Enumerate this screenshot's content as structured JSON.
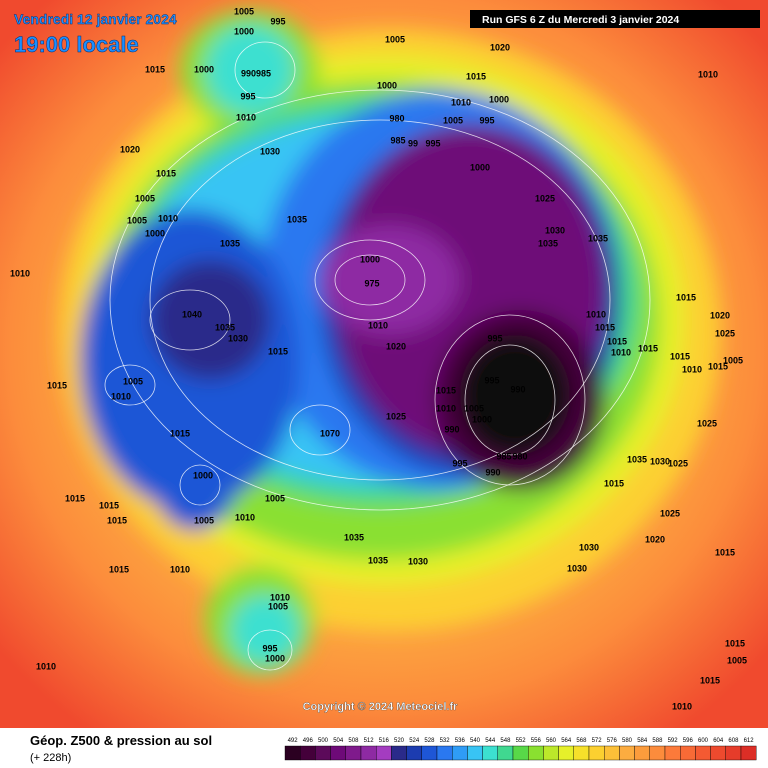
{
  "header": {
    "date": "Vendredi 12 janvier 2024",
    "time": "19:00 locale",
    "run": "Run GFS 6 Z du Mercredi 3 janvier 2024"
  },
  "copyright": "Copyright © 2024 Meteociel.fr",
  "footer": {
    "title": "Géop. Z500 & pression au sol",
    "lead": "(+ 228h)"
  },
  "colorbar": {
    "values": [
      492,
      496,
      500,
      504,
      508,
      512,
      516,
      520,
      524,
      528,
      532,
      536,
      540,
      544,
      548,
      552,
      556,
      560,
      564,
      568,
      572,
      576,
      580,
      584,
      588,
      592,
      596,
      600,
      604,
      608,
      612
    ],
    "colors": [
      "#2b0021",
      "#44003a",
      "#5c0a5a",
      "#6e0a78",
      "#7f1a8c",
      "#8e2aa3",
      "#a43cc0",
      "#2a2a8a",
      "#1c3cb0",
      "#1e56d6",
      "#2a78f0",
      "#2f9cf6",
      "#38c4f4",
      "#3ce0d0",
      "#40d890",
      "#58d848",
      "#8ae030",
      "#bce82a",
      "#e6f02a",
      "#f6e02a",
      "#fcd030",
      "#fcc038",
      "#fcac40",
      "#fc9c3c",
      "#fc8c3c",
      "#fc7a3a",
      "#f86a36",
      "#f45a32",
      "#ee4a2e",
      "#e63c2a",
      "#dc2e26"
    ]
  },
  "isobar_labels": [
    "1005",
    "995",
    "1000",
    "1015",
    "1000",
    "990985",
    "995",
    "1010",
    "1005",
    "1020",
    "1010",
    "1015",
    "1000",
    "1010",
    "1000",
    "980",
    "1005",
    "995",
    "985",
    "99",
    "995",
    "1020",
    "1030",
    "1015",
    "1000",
    "1005",
    "1010",
    "1005",
    "1000",
    "1035",
    "1025",
    "1030",
    "1035",
    "1035",
    "1035",
    "1010",
    "1000",
    "975",
    "1015",
    "1040",
    "1035",
    "1030",
    "1010",
    "1010",
    "1015",
    "1020",
    "1025",
    "1015",
    "1010",
    "1015",
    "995",
    "1020",
    "1015",
    "1015",
    "1005",
    "1010",
    "1015",
    "1005",
    "1010",
    "995",
    "990",
    "1015",
    "1015",
    "1010",
    "1005",
    "1000",
    "990",
    "1025",
    "1025",
    "1015",
    "1070",
    "1000",
    "995",
    "985",
    "980",
    "990",
    "1035",
    "1030",
    "1025",
    "1005",
    "1015",
    "1015",
    "1015",
    "1005",
    "1010",
    "1015",
    "1025",
    "1035",
    "1030",
    "1020",
    "1035",
    "1030",
    "1030",
    "1015",
    "1015",
    "1010",
    "1010",
    "1005",
    "995",
    "1000",
    "1010",
    "1015",
    "1005",
    "1015",
    "1010"
  ]
}
